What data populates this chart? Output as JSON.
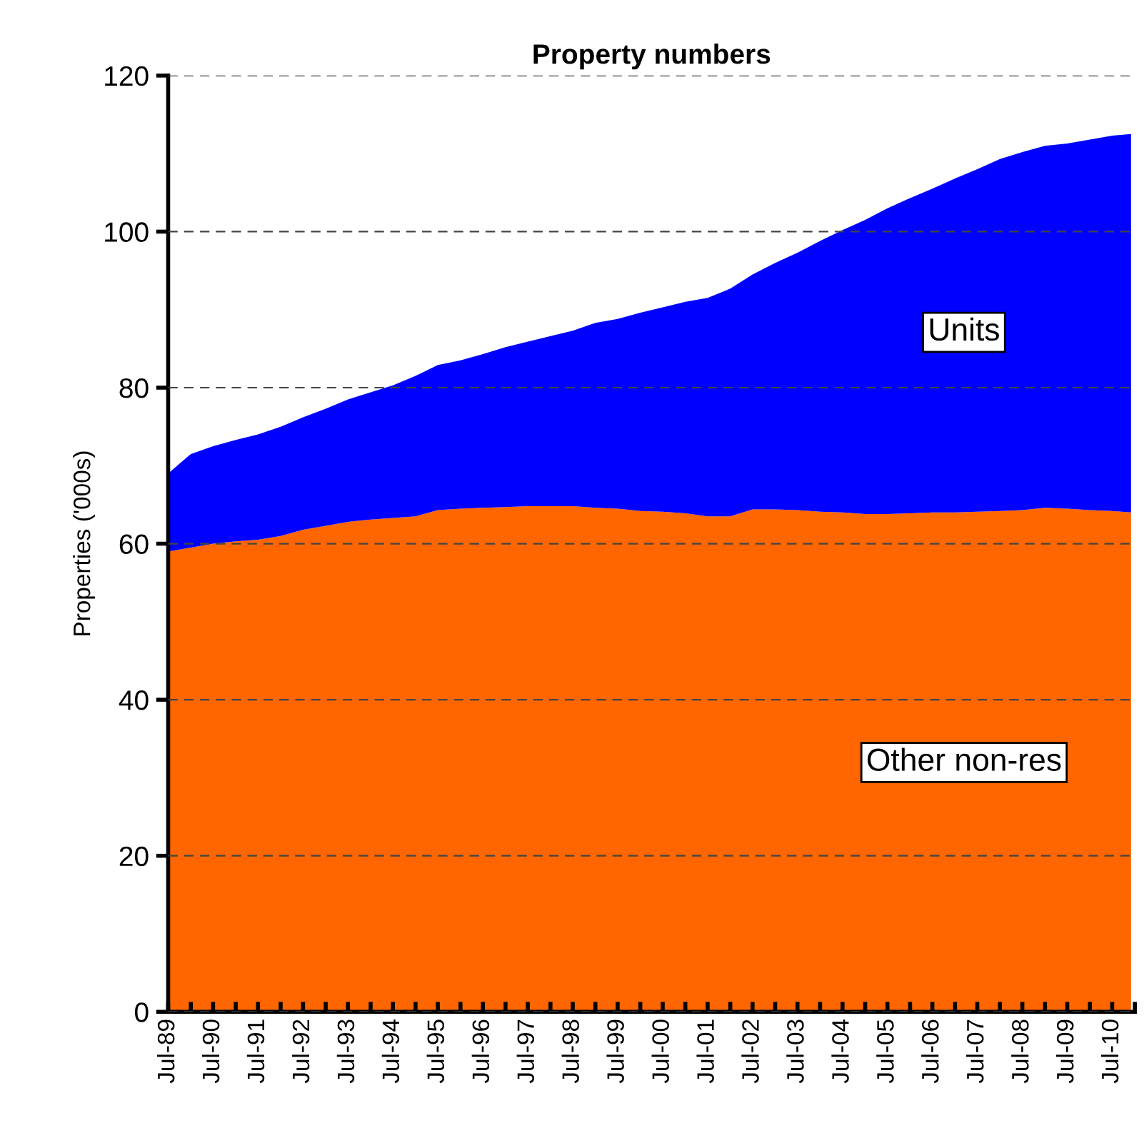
{
  "chart_data": {
    "type": "area",
    "stacked": true,
    "title": "Property numbers",
    "ylabel": "Properties ('000s)",
    "x": [
      "1989-07",
      "1990-01",
      "1990-07",
      "1991-01",
      "1991-07",
      "1992-01",
      "1992-07",
      "1993-01",
      "1993-07",
      "1994-01",
      "1994-07",
      "1995-01",
      "1995-07",
      "1996-01",
      "1996-07",
      "1997-01",
      "1997-07",
      "1998-01",
      "1998-07",
      "1999-01",
      "1999-07",
      "2000-01",
      "2000-07",
      "2001-01",
      "2001-07",
      "2002-01",
      "2002-07",
      "2003-01",
      "2003-07",
      "2004-01",
      "2004-07",
      "2005-01",
      "2005-07",
      "2006-01",
      "2006-07",
      "2007-01",
      "2007-07",
      "2008-01",
      "2008-07",
      "2009-01",
      "2009-07",
      "2010-01",
      "2010-07",
      "2010-12"
    ],
    "series": [
      {
        "name": "Other non-res",
        "color": "#ff6600",
        "values": [
          59.0,
          59.5,
          60.0,
          60.3,
          60.5,
          61.0,
          61.8,
          62.3,
          62.8,
          63.1,
          63.3,
          63.5,
          64.3,
          64.5,
          64.6,
          64.7,
          64.8,
          64.8,
          64.8,
          64.6,
          64.5,
          64.2,
          64.1,
          63.9,
          63.5,
          63.5,
          64.4,
          64.4,
          64.3,
          64.1,
          64.0,
          63.8,
          63.8,
          63.9,
          64.0,
          64.0,
          64.1,
          64.2,
          64.3,
          64.6,
          64.5,
          64.3,
          64.2,
          64.0
        ]
      },
      {
        "name": "Units",
        "color": "#0000ff",
        "values": [
          10.0,
          12.0,
          12.5,
          13.0,
          13.5,
          14.0,
          14.4,
          15.0,
          15.7,
          16.3,
          17.0,
          18.0,
          18.6,
          19.0,
          19.7,
          20.5,
          21.1,
          21.8,
          22.5,
          23.7,
          24.3,
          25.4,
          26.2,
          27.1,
          28.0,
          29.2,
          30.1,
          31.6,
          33.0,
          34.7,
          36.2,
          37.7,
          39.2,
          40.4,
          41.5,
          42.8,
          43.9,
          45.1,
          45.9,
          46.4,
          46.8,
          47.5,
          48.1,
          48.5
        ]
      }
    ],
    "ylim": [
      0,
      120
    ],
    "yticks": [
      0,
      20,
      40,
      60,
      80,
      100,
      120
    ],
    "xlim": [
      "1989-07",
      "2011-01"
    ],
    "xticks": [
      {
        "value": "1989-07",
        "label": "Jul-89"
      },
      {
        "value": "1990-01",
        "label": null
      },
      {
        "value": "1990-07",
        "label": "Jul-90"
      },
      {
        "value": "1991-01",
        "label": null
      },
      {
        "value": "1991-07",
        "label": "Jul-91"
      },
      {
        "value": "1992-01",
        "label": null
      },
      {
        "value": "1992-07",
        "label": "Jul-92"
      },
      {
        "value": "1993-01",
        "label": null
      },
      {
        "value": "1993-07",
        "label": "Jul-93"
      },
      {
        "value": "1994-01",
        "label": null
      },
      {
        "value": "1994-07",
        "label": "Jul-94"
      },
      {
        "value": "1995-01",
        "label": null
      },
      {
        "value": "1995-07",
        "label": "Jul-95"
      },
      {
        "value": "1996-01",
        "label": null
      },
      {
        "value": "1996-07",
        "label": "Jul-96"
      },
      {
        "value": "1997-01",
        "label": null
      },
      {
        "value": "1997-07",
        "label": "Jul-97"
      },
      {
        "value": "1998-01",
        "label": null
      },
      {
        "value": "1998-07",
        "label": "Jul-98"
      },
      {
        "value": "1999-01",
        "label": null
      },
      {
        "value": "1999-07",
        "label": "Jul-99"
      },
      {
        "value": "2000-01",
        "label": null
      },
      {
        "value": "2000-07",
        "label": "Jul-00"
      },
      {
        "value": "2001-01",
        "label": null
      },
      {
        "value": "2001-07",
        "label": "Jul-01"
      },
      {
        "value": "2002-01",
        "label": null
      },
      {
        "value": "2002-07",
        "label": "Jul-02"
      },
      {
        "value": "2003-01",
        "label": null
      },
      {
        "value": "2003-07",
        "label": "Jul-03"
      },
      {
        "value": "2004-01",
        "label": null
      },
      {
        "value": "2004-07",
        "label": "Jul-04"
      },
      {
        "value": "2005-01",
        "label": null
      },
      {
        "value": "2005-07",
        "label": "Jul-05"
      },
      {
        "value": "2006-01",
        "label": null
      },
      {
        "value": "2006-07",
        "label": "Jul-06"
      },
      {
        "value": "2007-01",
        "label": null
      },
      {
        "value": "2007-07",
        "label": "Jul-07"
      },
      {
        "value": "2008-01",
        "label": null
      },
      {
        "value": "2008-07",
        "label": "Jul-08"
      },
      {
        "value": "2009-01",
        "label": null
      },
      {
        "value": "2009-07",
        "label": "Jul-09"
      },
      {
        "value": "2010-01",
        "label": null
      },
      {
        "value": "2010-07",
        "label": "Jul-10"
      },
      {
        "value": "2011-01",
        "label": null
      }
    ],
    "grid": "y",
    "legend": false
  }
}
